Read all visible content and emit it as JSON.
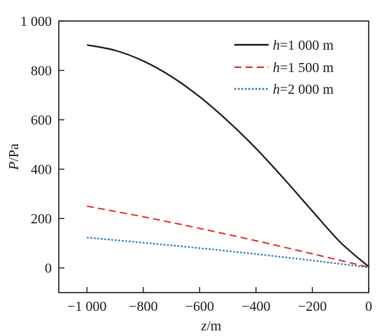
{
  "chart_data": {
    "type": "line",
    "xlabel_var": "z",
    "xlabel_unit": "/m",
    "ylabel_var": "P",
    "ylabel_unit": "/Pa",
    "xlim": [
      -1100,
      0
    ],
    "ylim": [
      -100,
      1000
    ],
    "x_ticks": [
      -1000,
      -800,
      -600,
      -400,
      -200,
      0
    ],
    "x_tick_labels": [
      "−1 000",
      "−800",
      "−600",
      "−400",
      "−200",
      "0"
    ],
    "y_ticks": [
      0,
      200,
      400,
      600,
      800,
      1000
    ],
    "y_tick_labels": [
      "0",
      "200",
      "400",
      "600",
      "800",
      "1 000"
    ],
    "grid": false,
    "legend_position": "top-right",
    "series": [
      {
        "name_var": "h",
        "name_rest": "=1 000 m",
        "color": "#1a1a1a",
        "dash": "solid",
        "x": [
          -1000,
          -900,
          -800,
          -700,
          -600,
          -500,
          -400,
          -300,
          -200,
          -100,
          0
        ],
        "values": [
          903,
          881,
          838,
          775,
          693,
          595,
          484,
          360,
          230,
          103,
          5
        ]
      },
      {
        "name_var": "h",
        "name_rest": "=1 500 m",
        "color": "#e32b2b",
        "dash": "dashed",
        "x": [
          -1000,
          -800,
          -600,
          -400,
          -200,
          0
        ],
        "values": [
          250,
          207,
          160,
          110,
          57,
          3
        ]
      },
      {
        "name_var": "h",
        "name_rest": "=2 000 m",
        "color": "#2d6fb5",
        "dash": "dotted",
        "x": [
          -1000,
          -800,
          -600,
          -400,
          -200,
          0
        ],
        "values": [
          123,
          102,
          80,
          56,
          30,
          2
        ]
      }
    ]
  }
}
